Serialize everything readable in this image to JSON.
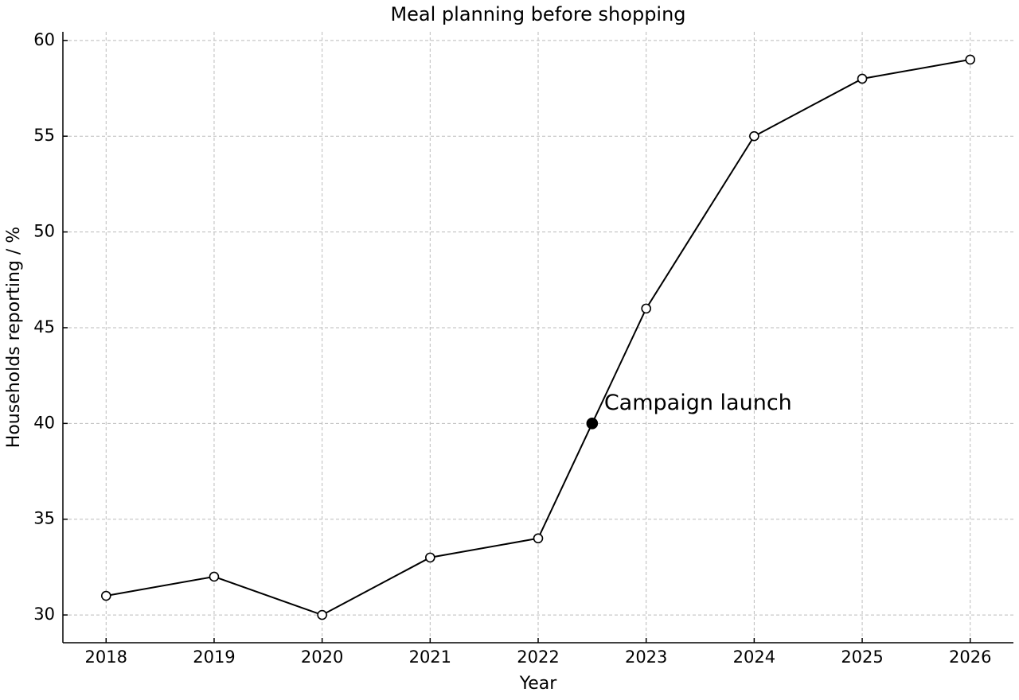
{
  "chart_data": {
    "type": "line",
    "title": "Meal planning before shopping",
    "x_label": "Year",
    "y_label": "Households reporting / %",
    "x": [
      2018,
      2019,
      2020,
      2021,
      2022,
      2022.5,
      2023,
      2024,
      2025,
      2026
    ],
    "series": [
      {
        "color": "#000000",
        "marker_fill": "#ffffff",
        "values": [
          31,
          32,
          30,
          33,
          34,
          40,
          46,
          55,
          58,
          59
        ]
      }
    ],
    "annotations": [
      {
        "text": "Campaign launch",
        "x": 2022.5,
        "y": 40,
        "color": "#000000"
      }
    ],
    "xlim": [
      2017.6,
      2026.4
    ],
    "ylim": [
      28.55,
      60.45
    ],
    "xticks": [
      2018,
      2019,
      2020,
      2021,
      2022,
      2023,
      2024,
      2025,
      2026
    ],
    "yticks": [
      30,
      35,
      40,
      45,
      50,
      55,
      60
    ],
    "grid": true
  }
}
